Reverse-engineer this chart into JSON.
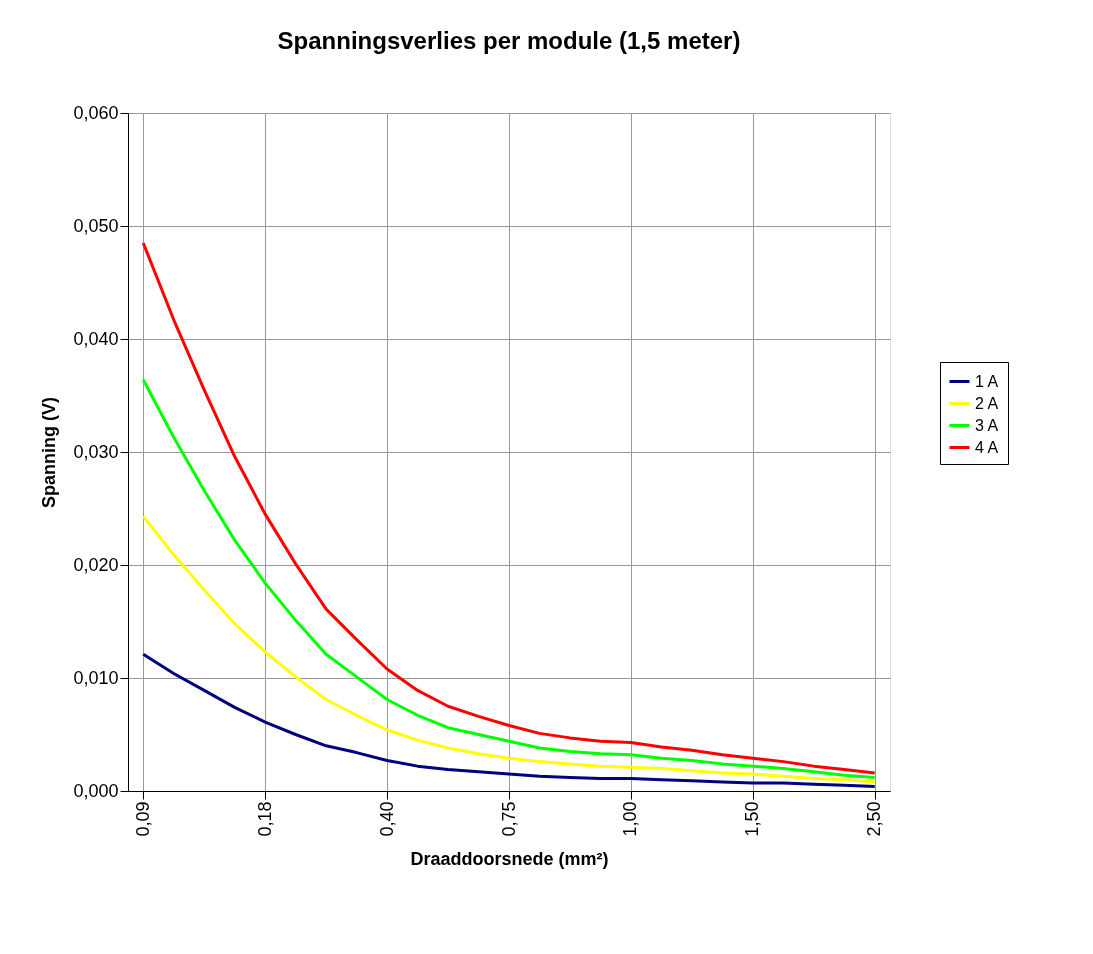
{
  "chart_data": {
    "type": "line",
    "title": "Spanningsverlies per module (1,5 meter)",
    "xlabel": "Draaddoorsnede (mm²)",
    "ylabel": "Spanning (V)",
    "categories": [
      "0,09",
      null,
      null,
      null,
      "0,18",
      null,
      null,
      null,
      "0,40",
      null,
      null,
      null,
      "0,75",
      null,
      null,
      null,
      "1,00",
      null,
      null,
      null,
      "1,50",
      null,
      null,
      null,
      "2,50"
    ],
    "series": [
      {
        "name": "1 A",
        "color": "#000080",
        "values": [
          0.0121,
          0.0104,
          0.0089,
          0.0074,
          0.0061,
          0.005,
          0.004,
          0.0034,
          0.0027,
          0.0022,
          0.0019,
          0.0017,
          0.0015,
          0.0013,
          0.0012,
          0.0011,
          0.0011,
          0.001,
          0.0009,
          0.0008,
          0.0007,
          0.0007,
          0.0006,
          0.0005,
          0.0004
        ]
      },
      {
        "name": "2 A",
        "color": "#ffff00",
        "values": [
          0.0243,
          0.0209,
          0.0178,
          0.0148,
          0.0123,
          0.0101,
          0.0081,
          0.0067,
          0.0054,
          0.0045,
          0.0038,
          0.0033,
          0.0029,
          0.0026,
          0.0024,
          0.0022,
          0.0021,
          0.002,
          0.0018,
          0.0016,
          0.0015,
          0.0013,
          0.0011,
          0.001,
          0.0008
        ]
      },
      {
        "name": "3 A",
        "color": "#00ff00",
        "values": [
          0.0364,
          0.0313,
          0.0266,
          0.0222,
          0.0184,
          0.0151,
          0.0121,
          0.0101,
          0.0081,
          0.0067,
          0.0056,
          0.005,
          0.0044,
          0.0038,
          0.0035,
          0.0033,
          0.0032,
          0.0029,
          0.0027,
          0.0024,
          0.0022,
          0.002,
          0.0017,
          0.0014,
          0.0012
        ]
      },
      {
        "name": "4 A",
        "color": "#ff0000",
        "values": [
          0.0485,
          0.0417,
          0.0355,
          0.0296,
          0.0245,
          0.0201,
          0.0161,
          0.0134,
          0.0108,
          0.0089,
          0.0075,
          0.0066,
          0.0058,
          0.0051,
          0.0047,
          0.0044,
          0.0043,
          0.0039,
          0.0036,
          0.0032,
          0.0029,
          0.0026,
          0.0022,
          0.0019,
          0.0016
        ]
      }
    ],
    "ylim": [
      0,
      0.06
    ],
    "yticks": [
      {
        "value": 0,
        "label": "0,000"
      },
      {
        "value": 0.01,
        "label": "0,010"
      },
      {
        "value": 0.02,
        "label": "0,020"
      },
      {
        "value": 0.03,
        "label": "0,030"
      },
      {
        "value": 0.04,
        "label": "0,040"
      },
      {
        "value": 0.05,
        "label": "0,050"
      },
      {
        "value": 0.06,
        "label": "0,060"
      }
    ],
    "grid": true,
    "legend": "right",
    "marker": "none",
    "line_style": "solid"
  }
}
